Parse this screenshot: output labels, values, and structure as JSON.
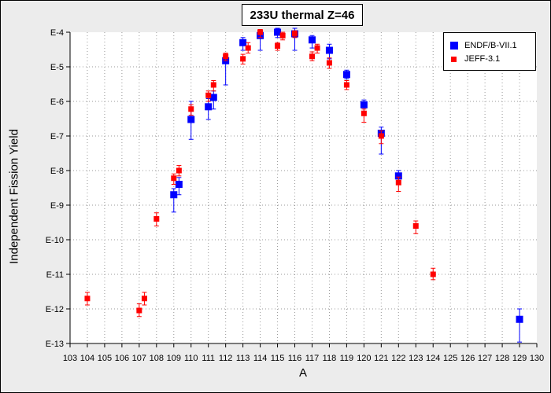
{
  "chart_data": {
    "type": "scatter",
    "title": "233U thermal Z=46",
    "xlabel": "A",
    "ylabel": "Independent Fission Yield",
    "x_range": [
      103,
      130
    ],
    "y_scale": "log",
    "y_range": [
      1e-13,
      0.0001
    ],
    "x_ticks": [
      "103",
      "104",
      "105",
      "106",
      "107",
      "108",
      "109",
      "110",
      "111",
      "112",
      "113",
      "114",
      "115",
      "116",
      "117",
      "118",
      "119",
      "120",
      "121",
      "122",
      "123",
      "124",
      "125",
      "126",
      "127",
      "128",
      "129",
      "130"
    ],
    "y_ticks": [
      "E-13",
      "E-12",
      "E-11",
      "E-10",
      "E-9",
      "E-8",
      "E-7",
      "E-6",
      "E-5",
      "E-4"
    ],
    "grid": true,
    "legend_position": "top-right",
    "series": [
      {
        "name": "ENDF/B-VII.1",
        "color": "#0000ff",
        "marker": "large-square",
        "points": [
          {
            "x": 109,
            "y": 2e-09,
            "err_lo": 6.3e-10,
            "err_hi": 3e-09
          },
          {
            "x": 109.3,
            "y": 4e-09,
            "err_lo": 2e-09,
            "err_hi": 6.3e-09
          },
          {
            "x": 110,
            "y": 3e-07,
            "err_lo": 8e-08,
            "err_hi": 1e-06
          },
          {
            "x": 111,
            "y": 7e-07,
            "err_lo": 3e-07,
            "err_hi": 1.2e-06
          },
          {
            "x": 111.3,
            "y": 1.3e-06,
            "err_lo": 6e-07,
            "err_hi": 2e-06
          },
          {
            "x": 112,
            "y": 1.5e-05,
            "err_lo": 3e-06,
            "err_hi": 2e-05
          },
          {
            "x": 113,
            "y": 5e-05,
            "err_lo": 3e-05,
            "err_hi": 7e-05
          },
          {
            "x": 114,
            "y": 8e-05,
            "err_lo": 3e-05,
            "err_hi": 0.00011
          },
          {
            "x": 115,
            "y": 0.0001,
            "err_lo": 7e-05,
            "err_hi": 0.00013
          },
          {
            "x": 116,
            "y": 9e-05,
            "err_lo": 3e-05,
            "err_hi": 0.00013
          },
          {
            "x": 117,
            "y": 6e-05,
            "err_lo": 3.5e-05,
            "err_hi": 8e-05
          },
          {
            "x": 118,
            "y": 3e-05,
            "err_lo": 1.7e-05,
            "err_hi": 4.5e-05
          },
          {
            "x": 119,
            "y": 6e-06,
            "err_lo": 4.5e-06,
            "err_hi": 8e-06
          },
          {
            "x": 120,
            "y": 8e-07,
            "err_lo": 4e-07,
            "err_hi": 1.1e-06
          },
          {
            "x": 121,
            "y": 1.2e-07,
            "err_lo": 3e-08,
            "err_hi": 1.8e-07
          },
          {
            "x": 122,
            "y": 7e-09,
            "err_lo": 4e-09,
            "err_hi": 1e-08
          },
          {
            "x": 129,
            "y": 5e-13,
            "err_lo": 1.1e-13,
            "err_hi": 1e-12
          }
        ]
      },
      {
        "name": "JEFF-3.1",
        "color": "#ff0000",
        "marker": "small-square",
        "points": [
          {
            "x": 104,
            "y": 2e-12,
            "err_lo": 1.3e-12,
            "err_hi": 3e-12
          },
          {
            "x": 107,
            "y": 9e-13,
            "err_lo": 6e-13,
            "err_hi": 1.4e-12
          },
          {
            "x": 107.3,
            "y": 2e-12,
            "err_lo": 1.3e-12,
            "err_hi": 3e-12
          },
          {
            "x": 108,
            "y": 4e-10,
            "err_lo": 2.5e-10,
            "err_hi": 6e-10
          },
          {
            "x": 109,
            "y": 6e-09,
            "err_lo": 4e-09,
            "err_hi": 8e-09
          },
          {
            "x": 109.3,
            "y": 1e-08,
            "err_lo": 7e-09,
            "err_hi": 1.4e-08
          },
          {
            "x": 110,
            "y": 6e-07,
            "err_lo": 4e-07,
            "err_hi": 8e-07
          },
          {
            "x": 111,
            "y": 1.5e-06,
            "err_lo": 1e-06,
            "err_hi": 2e-06
          },
          {
            "x": 111.3,
            "y": 3e-06,
            "err_lo": 2e-06,
            "err_hi": 4e-06
          },
          {
            "x": 112,
            "y": 2e-05,
            "err_lo": 1.5e-05,
            "err_hi": 2.5e-05
          },
          {
            "x": 113,
            "y": 1.7e-05,
            "err_lo": 1.2e-05,
            "err_hi": 2.3e-05
          },
          {
            "x": 113.3,
            "y": 3.5e-05,
            "err_lo": 2.5e-05,
            "err_hi": 5e-05
          },
          {
            "x": 114,
            "y": 0.0001,
            "err_lo": 7e-05,
            "err_hi": 0.00012
          },
          {
            "x": 115,
            "y": 4e-05,
            "err_lo": 3e-05,
            "err_hi": 5e-05
          },
          {
            "x": 115.3,
            "y": 8e-05,
            "err_lo": 6e-05,
            "err_hi": 0.0001
          },
          {
            "x": 116,
            "y": 9e-05,
            "err_lo": 7e-05,
            "err_hi": 0.00011
          },
          {
            "x": 117,
            "y": 2e-05,
            "err_lo": 1.5e-05,
            "err_hi": 2.7e-05
          },
          {
            "x": 117.3,
            "y": 3.5e-05,
            "err_lo": 2.5e-05,
            "err_hi": 4.5e-05
          },
          {
            "x": 118,
            "y": 1.3e-05,
            "err_lo": 9e-06,
            "err_hi": 1.8e-05
          },
          {
            "x": 119,
            "y": 3e-06,
            "err_lo": 2.2e-06,
            "err_hi": 4e-06
          },
          {
            "x": 120,
            "y": 4.5e-07,
            "err_lo": 2.5e-07,
            "err_hi": 6e-07
          },
          {
            "x": 121,
            "y": 1e-07,
            "err_lo": 6e-08,
            "err_hi": 1.4e-07
          },
          {
            "x": 122,
            "y": 4.5e-09,
            "err_lo": 2.5e-09,
            "err_hi": 6.5e-09
          },
          {
            "x": 123,
            "y": 2.5e-10,
            "err_lo": 1.5e-10,
            "err_hi": 3.5e-10
          },
          {
            "x": 124,
            "y": 1e-11,
            "err_lo": 7e-12,
            "err_hi": 1.5e-11
          }
        ]
      }
    ]
  }
}
